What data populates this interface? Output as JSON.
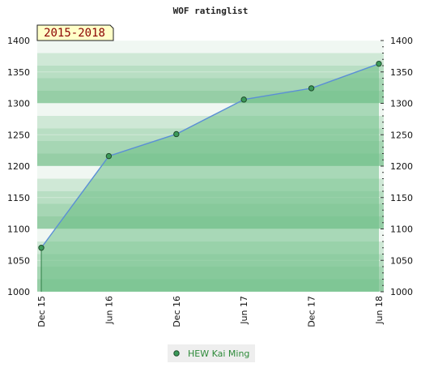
{
  "chart_data": {
    "type": "area",
    "title": "WOF ratinglist",
    "badge": "2015-2018",
    "categories": [
      "Dec 15",
      "Jun 16",
      "Dec 16",
      "Jun 17",
      "Dec 17",
      "Jun 18"
    ],
    "series": [
      {
        "name": "HEW Kai Ming",
        "values": [
          1070,
          1216,
          1251,
          1306,
          1324,
          1363
        ]
      }
    ],
    "ylim": [
      1000,
      1400
    ],
    "yticks": [
      1000,
      1050,
      1100,
      1150,
      1200,
      1250,
      1300,
      1350,
      1400
    ],
    "grid": true,
    "legend_position": "bottom-center"
  },
  "colors": {
    "line": "#5b8fd6",
    "fill": "#6dbf86",
    "point": "#3c9a5a",
    "badge_bg": "#ffffc8"
  }
}
